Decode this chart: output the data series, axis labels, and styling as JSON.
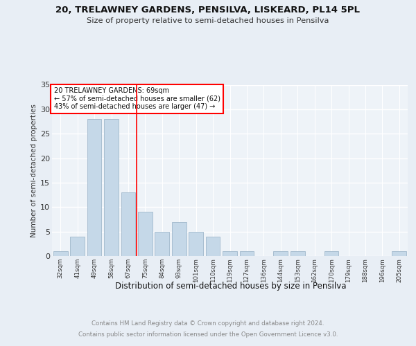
{
  "title1": "20, TRELAWNEY GARDENS, PENSILVA, LISKEARD, PL14 5PL",
  "title2": "Size of property relative to semi-detached houses in Pensilva",
  "xlabel": "Distribution of semi-detached houses by size in Pensilva",
  "ylabel": "Number of semi-detached properties",
  "categories": [
    "32sqm",
    "41sqm",
    "49sqm",
    "58sqm",
    "67sqm",
    "75sqm",
    "84sqm",
    "93sqm",
    "101sqm",
    "110sqm",
    "119sqm",
    "127sqm",
    "136sqm",
    "144sqm",
    "153sqm",
    "162sqm",
    "170sqm",
    "179sqm",
    "188sqm",
    "196sqm",
    "205sqm"
  ],
  "values": [
    1,
    4,
    28,
    28,
    13,
    9,
    5,
    7,
    5,
    4,
    1,
    1,
    0,
    1,
    1,
    0,
    1,
    0,
    0,
    0,
    1
  ],
  "bar_color": "#c5d8e8",
  "bar_edge_color": "#a0b8cc",
  "red_line_x": 4.5,
  "annotation_text": "20 TRELAWNEY GARDENS: 69sqm\n← 57% of semi-detached houses are smaller (62)\n43% of semi-detached houses are larger (47) →",
  "annotation_box_color": "white",
  "annotation_box_edge": "red",
  "footer1": "Contains HM Land Registry data © Crown copyright and database right 2024.",
  "footer2": "Contains public sector information licensed under the Open Government Licence v3.0.",
  "bg_color": "#e8eef5",
  "plot_bg_color": "#eef3f8",
  "grid_color": "#ffffff",
  "ylim": [
    0,
    35
  ],
  "yticks": [
    0,
    5,
    10,
    15,
    20,
    25,
    30,
    35
  ]
}
